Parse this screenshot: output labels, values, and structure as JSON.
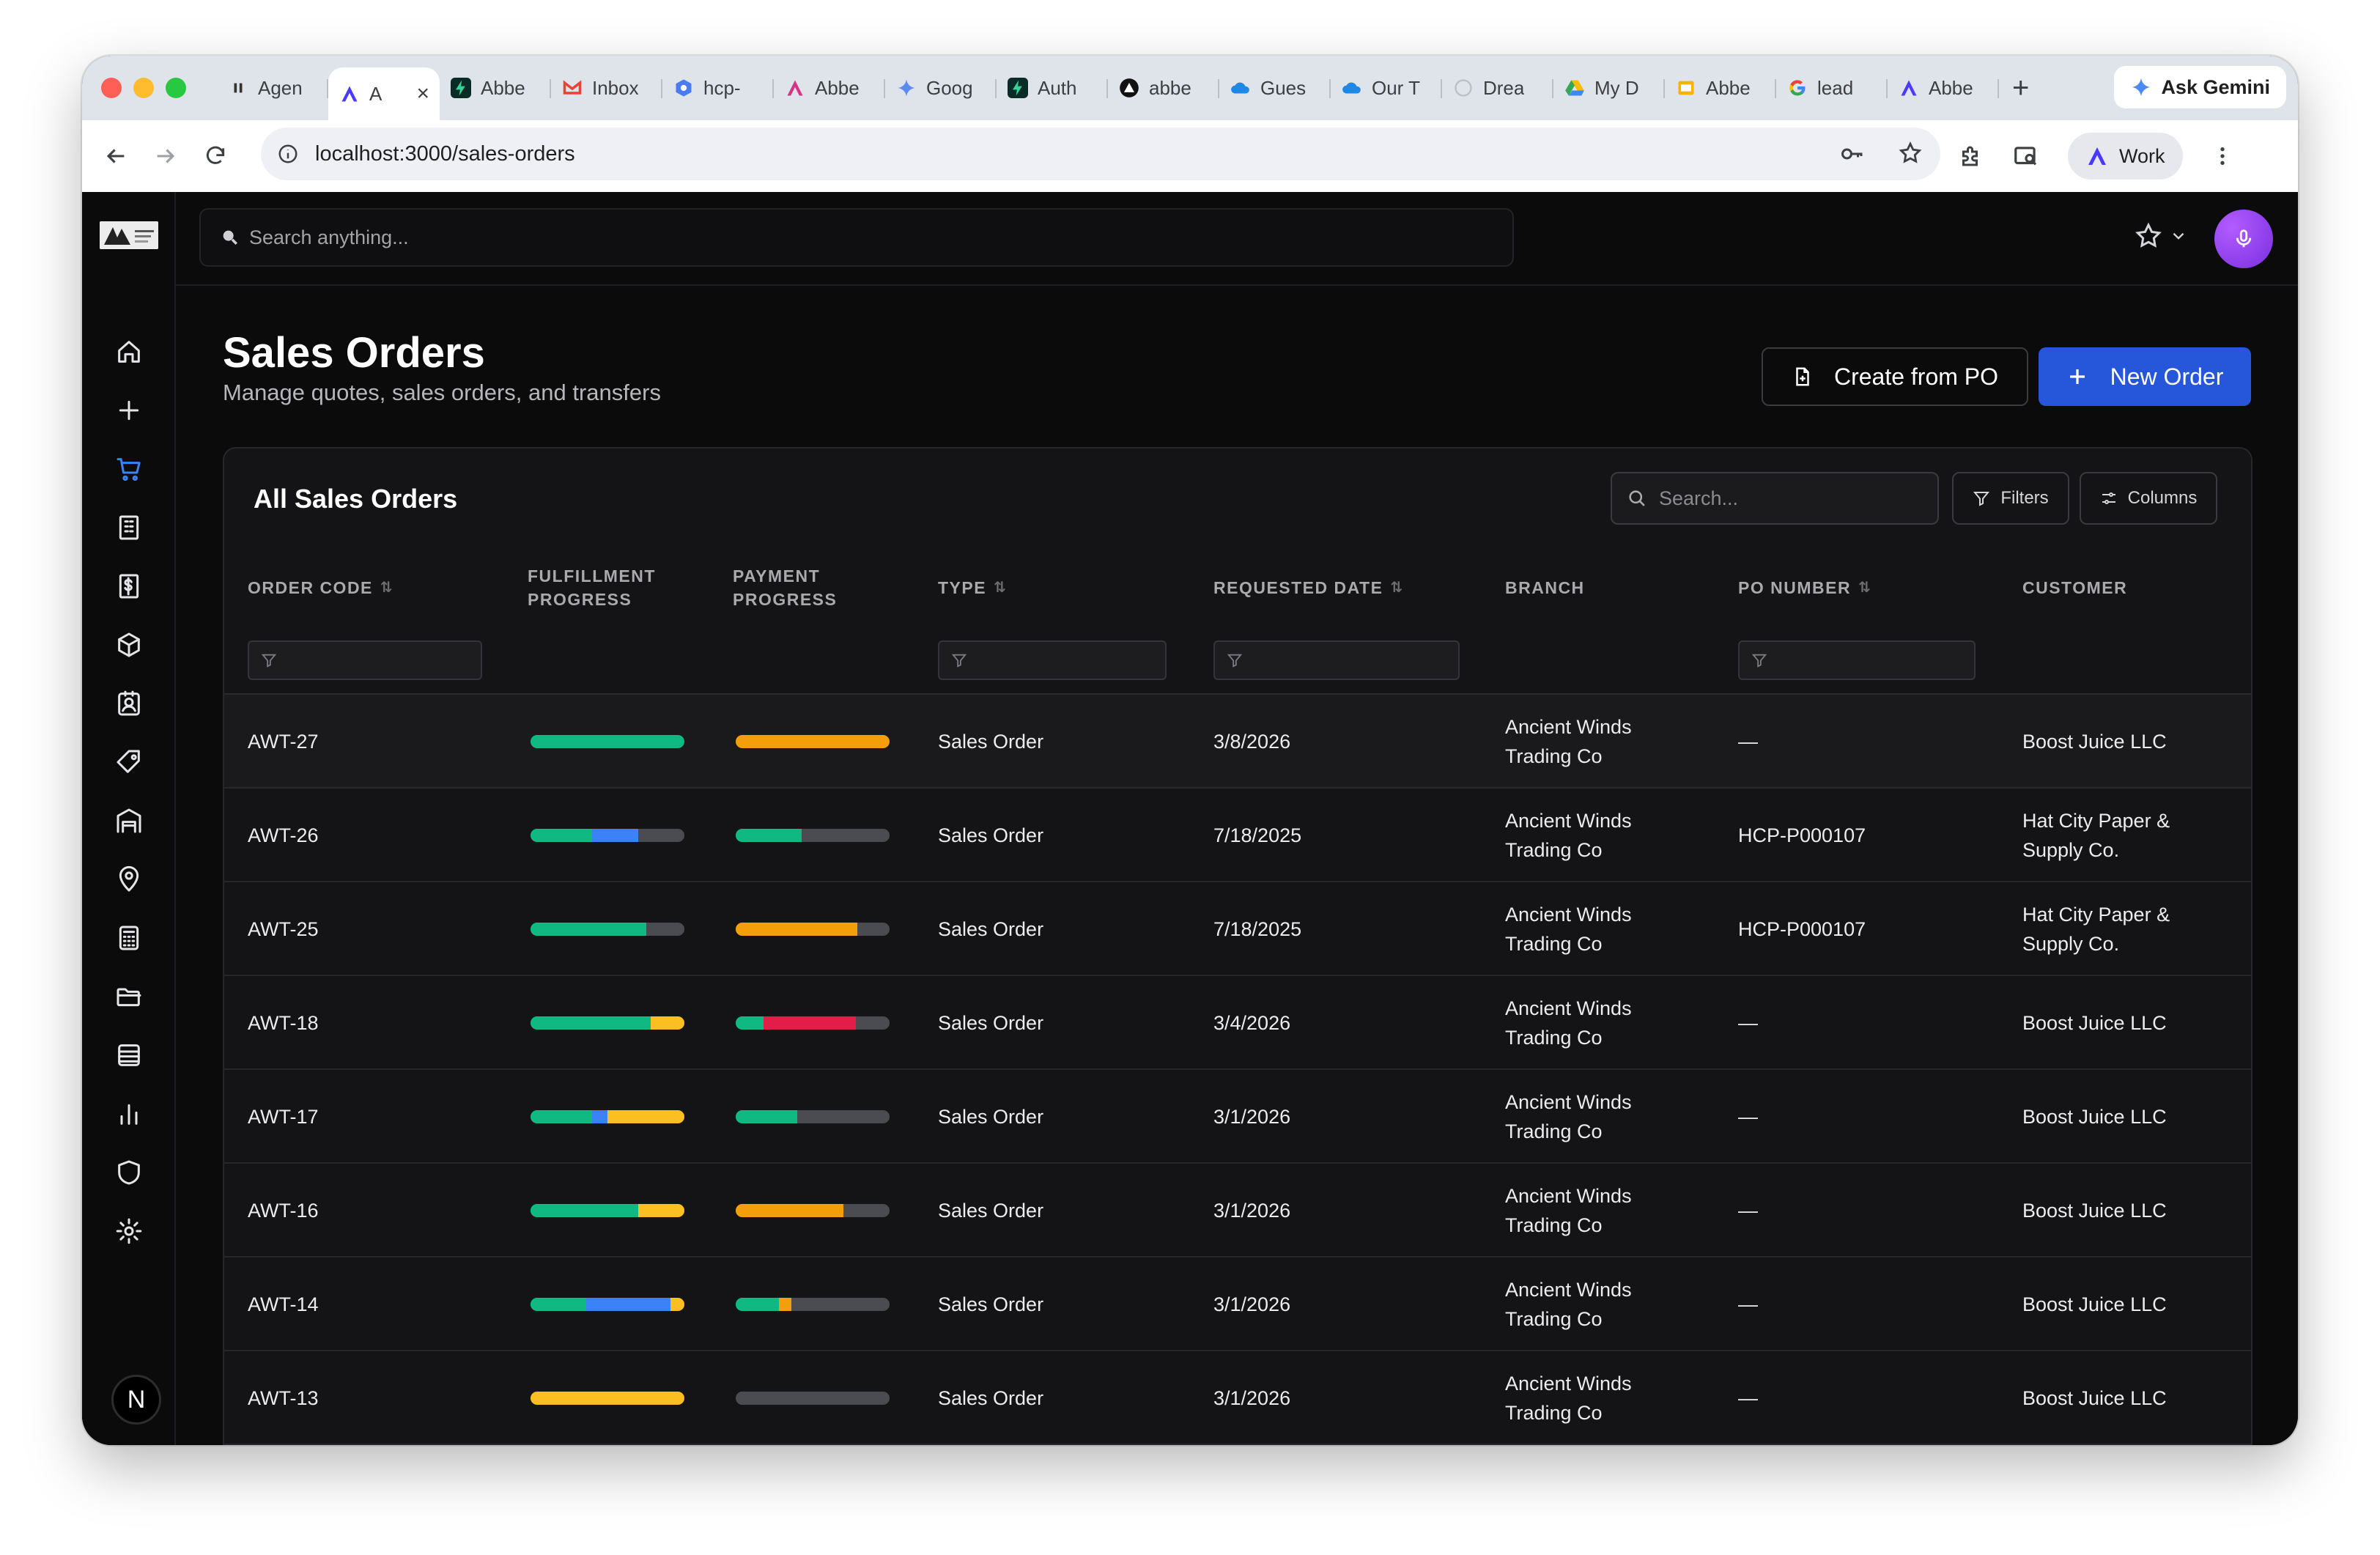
{
  "browser": {
    "tabs": [
      {
        "title": "Agen",
        "icon": "pause-icon",
        "color": "#e8e8e8"
      },
      {
        "title": "A",
        "icon": "app-a-icon",
        "color": "#4a3aff",
        "active": true
      },
      {
        "title": "Abbe",
        "icon": "bolt-icon",
        "color": "#0b2b26"
      },
      {
        "title": "Inbox",
        "icon": "gmail-icon",
        "color": "#ea4335"
      },
      {
        "title": "hcp-",
        "icon": "hex-icon",
        "color": "#4a7cf0"
      },
      {
        "title": "Abbe",
        "icon": "app-a-icon",
        "color": "#d63384"
      },
      {
        "title": "Goog",
        "icon": "gemini-icon",
        "color": "#5b8def"
      },
      {
        "title": "Auth",
        "icon": "bolt-icon",
        "color": "#0b2b26"
      },
      {
        "title": "abbe",
        "icon": "triangle-icon",
        "color": "#111111"
      },
      {
        "title": "Gues",
        "icon": "cloud-icon",
        "color": "#1e88e5"
      },
      {
        "title": "Our T",
        "icon": "cloud-icon",
        "color": "#1e88e5"
      },
      {
        "title": "Drea",
        "icon": "circle-icon",
        "color": "#cfcfd4"
      },
      {
        "title": "My D",
        "icon": "drive-icon",
        "color": "#34a853"
      },
      {
        "title": "Abbe",
        "icon": "slides-icon",
        "color": "#f4b400"
      },
      {
        "title": "lead",
        "icon": "google-icon",
        "color": "#4285f4"
      },
      {
        "title": "Abbe",
        "icon": "app-a-icon",
        "color": "#4a3aff"
      }
    ],
    "new_tab": "+",
    "ask_gemini": "Ask Gemini",
    "url": "localhost:3000/sales-orders",
    "profile": "Work"
  },
  "topbar": {
    "search_placeholder": "Search anything..."
  },
  "page": {
    "title": "Sales Orders",
    "subtitle": "Manage quotes, sales orders, and transfers",
    "create_from_po": "Create from PO",
    "new_order": "New Order"
  },
  "table": {
    "title": "All Sales Orders",
    "search_placeholder": "Search...",
    "filters_label": "Filters",
    "columns_label": "Columns",
    "headers": {
      "order_code": "ORDER CODE",
      "fulfillment_1": "FULFILLMENT",
      "fulfillment_2": "PROGRESS",
      "payment_1": "PAYMENT",
      "payment_2": "PROGRESS",
      "type": "TYPE",
      "requested_date": "REQUESTED DATE",
      "branch": "BRANCH",
      "po_number": "PO NUMBER",
      "customer": "CUSTOMER"
    },
    "colors": {
      "green": "#10b981",
      "blue": "#3b82f6",
      "amber": "#fbbf24",
      "orange": "#f59e0b",
      "red": "#e11d48",
      "track": "#4b4c52"
    },
    "rows": [
      {
        "code": "AWT-27",
        "fulfillment": [
          {
            "c": "green",
            "p": 100
          }
        ],
        "payment": [
          {
            "c": "orange",
            "p": 100
          }
        ],
        "type": "Sales Order",
        "date": "3/8/2026",
        "branch_1": "Ancient Winds",
        "branch_2": "Trading Co",
        "po": "—",
        "customer_1": "Boost Juice LLC",
        "customer_2": ""
      },
      {
        "code": "AWT-26",
        "fulfillment": [
          {
            "c": "green",
            "p": 40
          },
          {
            "c": "blue",
            "p": 30
          }
        ],
        "payment": [
          {
            "c": "green",
            "p": 43
          }
        ],
        "type": "Sales Order",
        "date": "7/18/2025",
        "branch_1": "Ancient Winds",
        "branch_2": "Trading Co",
        "po": "HCP-P000107",
        "customer_1": "Hat City Paper &",
        "customer_2": "Supply Co."
      },
      {
        "code": "AWT-25",
        "fulfillment": [
          {
            "c": "green",
            "p": 75
          }
        ],
        "payment": [
          {
            "c": "orange",
            "p": 79
          }
        ],
        "type": "Sales Order",
        "date": "7/18/2025",
        "branch_1": "Ancient Winds",
        "branch_2": "Trading Co",
        "po": "HCP-P000107",
        "customer_1": "Hat City Paper &",
        "customer_2": "Supply Co."
      },
      {
        "code": "AWT-18",
        "fulfillment": [
          {
            "c": "green",
            "p": 78
          },
          {
            "c": "amber",
            "p": 22
          }
        ],
        "payment": [
          {
            "c": "green",
            "p": 18
          },
          {
            "c": "red",
            "p": 60
          }
        ],
        "type": "Sales Order",
        "date": "3/4/2026",
        "branch_1": "Ancient Winds",
        "branch_2": "Trading Co",
        "po": "—",
        "customer_1": "Boost Juice LLC",
        "customer_2": ""
      },
      {
        "code": "AWT-17",
        "fulfillment": [
          {
            "c": "green",
            "p": 40
          },
          {
            "c": "blue",
            "p": 10
          },
          {
            "c": "amber",
            "p": 50
          }
        ],
        "payment": [
          {
            "c": "green",
            "p": 40
          }
        ],
        "type": "Sales Order",
        "date": "3/1/2026",
        "branch_1": "Ancient Winds",
        "branch_2": "Trading Co",
        "po": "—",
        "customer_1": "Boost Juice LLC",
        "customer_2": ""
      },
      {
        "code": "AWT-16",
        "fulfillment": [
          {
            "c": "green",
            "p": 70
          },
          {
            "c": "amber",
            "p": 30
          }
        ],
        "payment": [
          {
            "c": "orange",
            "p": 70
          }
        ],
        "type": "Sales Order",
        "date": "3/1/2026",
        "branch_1": "Ancient Winds",
        "branch_2": "Trading Co",
        "po": "—",
        "customer_1": "Boost Juice LLC",
        "customer_2": ""
      },
      {
        "code": "AWT-14",
        "fulfillment": [
          {
            "c": "green",
            "p": 36
          },
          {
            "c": "blue",
            "p": 55
          },
          {
            "c": "amber",
            "p": 9
          }
        ],
        "payment": [
          {
            "c": "green",
            "p": 28
          },
          {
            "c": "orange",
            "p": 8
          }
        ],
        "type": "Sales Order",
        "date": "3/1/2026",
        "branch_1": "Ancient Winds",
        "branch_2": "Trading Co",
        "po": "—",
        "customer_1": "Boost Juice LLC",
        "customer_2": ""
      },
      {
        "code": "AWT-13",
        "fulfillment": [
          {
            "c": "amber",
            "p": 100
          }
        ],
        "payment": [],
        "type": "Sales Order",
        "date": "3/1/2026",
        "branch_1": "Ancient Winds",
        "branch_2": "Trading Co",
        "po": "—",
        "customer_1": "Boost Juice LLC",
        "customer_2": ""
      }
    ]
  },
  "sidebar": {
    "items": [
      {
        "icon": "home-icon",
        "active": false
      },
      {
        "icon": "plus-icon",
        "active": false
      },
      {
        "icon": "cart-icon",
        "active": true
      },
      {
        "icon": "building-icon",
        "active": false
      },
      {
        "icon": "invoice-icon",
        "active": false
      },
      {
        "icon": "package-icon",
        "active": false
      },
      {
        "icon": "contact-icon",
        "active": false
      },
      {
        "icon": "tag-icon",
        "active": false
      },
      {
        "icon": "warehouse-icon",
        "active": false
      },
      {
        "icon": "location-icon",
        "active": false
      },
      {
        "icon": "calculator-icon",
        "active": false
      },
      {
        "icon": "folder-icon",
        "active": false
      },
      {
        "icon": "archive-icon",
        "active": false
      },
      {
        "icon": "bar-chart-icon",
        "active": false
      },
      {
        "icon": "shield-icon",
        "active": false
      },
      {
        "icon": "gear-icon",
        "active": false
      }
    ],
    "user_initial": "N"
  }
}
